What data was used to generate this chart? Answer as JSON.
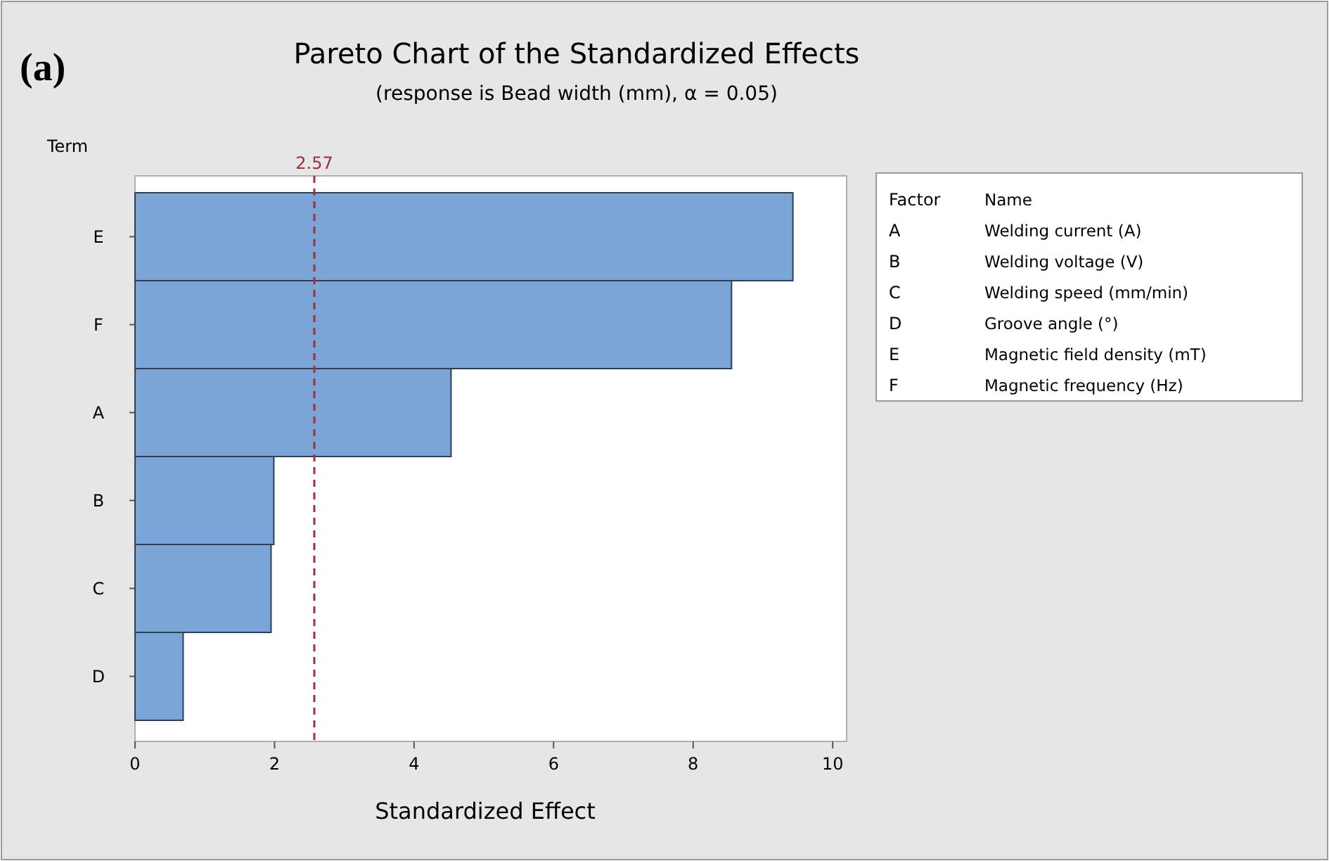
{
  "chart_data": {
    "type": "bar",
    "orientation": "horizontal",
    "title": "Pareto Chart of the Standardized Effects",
    "subtitle": "(response is Bead width (mm), α = 0.05)",
    "xlabel": "Standardized Effect",
    "ylabel": "Term",
    "categories": [
      "E",
      "F",
      "A",
      "B",
      "C",
      "D"
    ],
    "values": [
      9.43,
      8.55,
      4.53,
      1.99,
      1.95,
      0.69
    ],
    "color": "#7ba5d6",
    "xlim": [
      0,
      10.2
    ],
    "xticks": [
      0,
      2,
      4,
      6,
      8,
      10
    ],
    "ref_lines": [
      {
        "axis": "x",
        "value": 2.57,
        "label": "2.57",
        "color": "#a03040",
        "line_style": "dashed"
      }
    ],
    "annotations": [
      "(a)",
      "Factor",
      "Name",
      "A",
      "Welding current (A)",
      "B",
      "Welding voltage (V)",
      "C",
      "Welding speed (mm/min)",
      "D",
      "Groove angle (°)",
      "E",
      "Magnetic field density (mT)",
      "F",
      "Magnetic frequency (Hz)"
    ],
    "grid": false
  }
}
